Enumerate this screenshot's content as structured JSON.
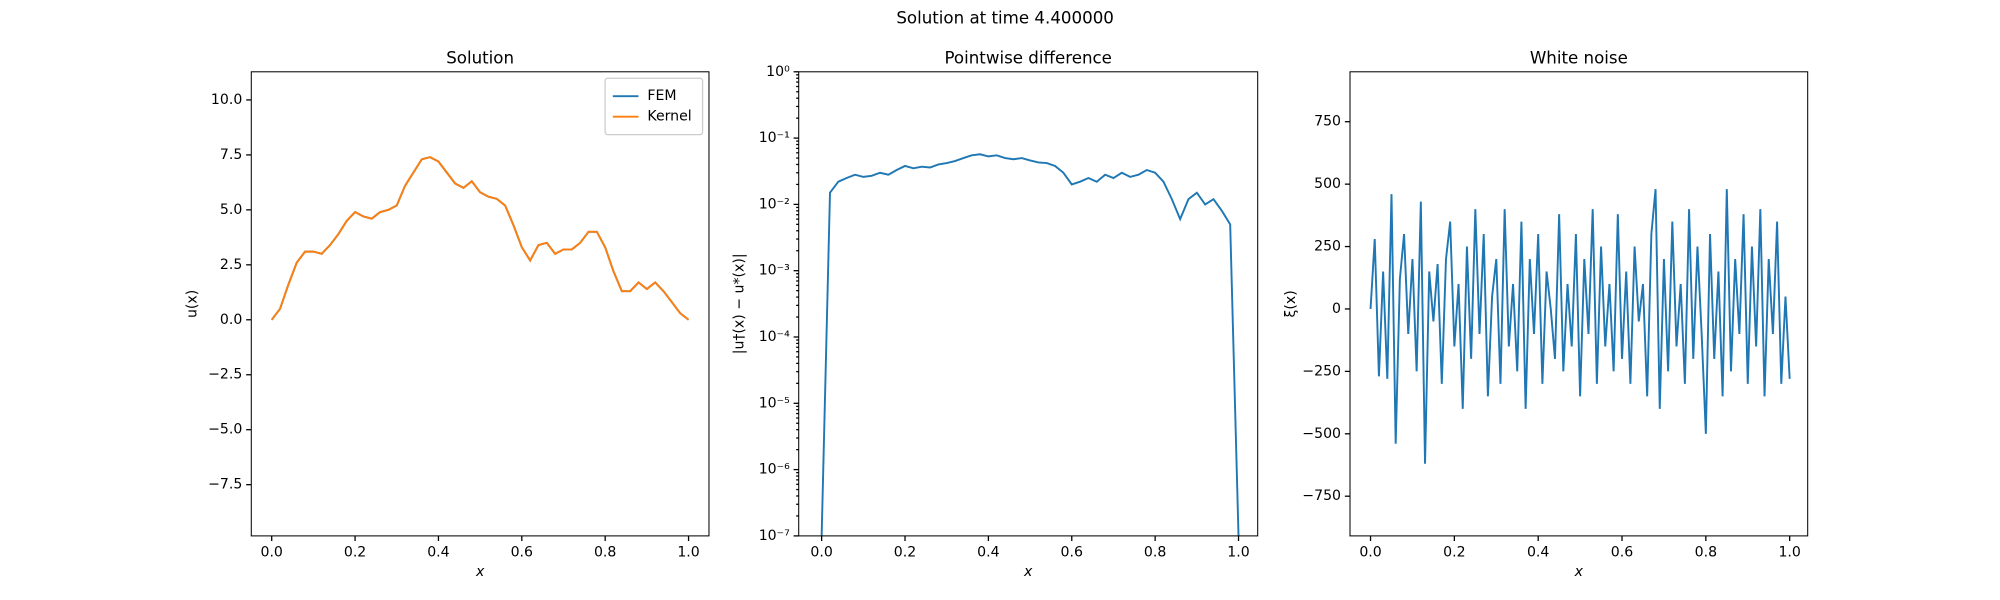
{
  "suptitle": "Solution at time 4.400000",
  "chart_data": [
    {
      "type": "line",
      "title": "Solution",
      "xlabel": "x",
      "ylabel": "u(x)",
      "x": [
        0,
        0.02,
        0.04,
        0.06,
        0.08,
        0.1,
        0.12,
        0.14,
        0.16,
        0.18,
        0.2,
        0.22,
        0.24,
        0.26,
        0.28,
        0.3,
        0.32,
        0.34,
        0.36,
        0.38,
        0.4,
        0.42,
        0.44,
        0.46,
        0.48,
        0.5,
        0.52,
        0.54,
        0.56,
        0.58,
        0.6,
        0.62,
        0.64,
        0.66,
        0.68,
        0.7,
        0.72,
        0.74,
        0.76,
        0.78,
        0.8,
        0.82,
        0.84,
        0.86,
        0.88,
        0.9,
        0.92,
        0.94,
        0.96,
        0.98,
        1
      ],
      "series": [
        {
          "name": "FEM",
          "color": "#1f77b4",
          "values": [
            0,
            0.5,
            1.6,
            2.6,
            3.1,
            3.1,
            3.0,
            3.4,
            3.9,
            4.5,
            4.9,
            4.7,
            4.6,
            4.9,
            5.0,
            5.2,
            6.1,
            6.7,
            7.3,
            7.4,
            7.2,
            6.7,
            6.2,
            6.0,
            6.3,
            5.8,
            5.6,
            5.5,
            5.2,
            4.3,
            3.3,
            2.7,
            3.4,
            3.5,
            3.0,
            3.2,
            3.2,
            3.5,
            4.0,
            4.0,
            3.3,
            2.2,
            1.3,
            1.3,
            1.7,
            1.4,
            1.7,
            1.3,
            0.8,
            0.3,
            0
          ]
        },
        {
          "name": "Kernel",
          "color": "#ff7f0e",
          "values": [
            0,
            0.5,
            1.6,
            2.6,
            3.1,
            3.1,
            3.0,
            3.4,
            3.9,
            4.5,
            4.9,
            4.7,
            4.6,
            4.9,
            5.0,
            5.2,
            6.1,
            6.7,
            7.3,
            7.4,
            7.2,
            6.7,
            6.2,
            6.0,
            6.3,
            5.8,
            5.6,
            5.5,
            5.2,
            4.3,
            3.3,
            2.7,
            3.4,
            3.5,
            3.0,
            3.2,
            3.2,
            3.5,
            4.0,
            4.0,
            3.3,
            2.2,
            1.3,
            1.3,
            1.7,
            1.4,
            1.7,
            1.3,
            0.8,
            0.3,
            0
          ]
        }
      ],
      "xlim": [
        -0.049,
        1.049
      ],
      "ylim": [
        -9.83,
        11.28
      ],
      "xticks": [
        {
          "value": 0,
          "label": "0.0"
        },
        {
          "value": 0.2,
          "label": "0.2"
        },
        {
          "value": 0.4,
          "label": "0.4"
        },
        {
          "value": 0.6,
          "label": "0.6"
        },
        {
          "value": 0.8,
          "label": "0.8"
        },
        {
          "value": 1,
          "label": "1.0"
        }
      ],
      "yticks": [
        {
          "value": -7.5,
          "label": "−7.5"
        },
        {
          "value": -5,
          "label": "−5.0"
        },
        {
          "value": -2.5,
          "label": "−2.5"
        },
        {
          "value": 0,
          "label": "0.0"
        },
        {
          "value": 2.5,
          "label": "2.5"
        },
        {
          "value": 5,
          "label": "5.0"
        },
        {
          "value": 7.5,
          "label": "7.5"
        },
        {
          "value": 10,
          "label": "10.0"
        }
      ],
      "legend": "upper right"
    },
    {
      "type": "line",
      "title": "Pointwise difference",
      "xlabel": "x",
      "ylabel": "|u†(x) − u*(x)|",
      "yscale": "log",
      "color": "#1f77b4",
      "x": [
        0,
        0.02,
        0.04,
        0.06,
        0.08,
        0.1,
        0.12,
        0.14,
        0.16,
        0.18,
        0.2,
        0.22,
        0.24,
        0.26,
        0.28,
        0.3,
        0.32,
        0.34,
        0.36,
        0.38,
        0.4,
        0.42,
        0.44,
        0.46,
        0.48,
        0.5,
        0.52,
        0.54,
        0.56,
        0.58,
        0.6,
        0.62,
        0.64,
        0.66,
        0.68,
        0.7,
        0.72,
        0.74,
        0.76,
        0.78,
        0.8,
        0.82,
        0.84,
        0.86,
        0.88,
        0.9,
        0.92,
        0.94,
        0.96,
        0.98,
        1
      ],
      "values": [
        1e-07,
        0.015,
        0.022,
        0.025,
        0.028,
        0.026,
        0.027,
        0.03,
        0.028,
        0.033,
        0.038,
        0.035,
        0.037,
        0.036,
        0.04,
        0.042,
        0.045,
        0.05,
        0.055,
        0.057,
        0.053,
        0.055,
        0.05,
        0.048,
        0.05,
        0.046,
        0.043,
        0.042,
        0.038,
        0.03,
        0.02,
        0.022,
        0.025,
        0.022,
        0.028,
        0.025,
        0.03,
        0.026,
        0.028,
        0.033,
        0.03,
        0.022,
        0.012,
        0.006,
        0.012,
        0.015,
        0.01,
        0.012,
        0.008,
        0.005,
        1e-07
      ],
      "xlim": [
        -0.055,
        1.046
      ],
      "ylim": [
        1e-07,
        1
      ],
      "xticks": [
        {
          "value": 0,
          "label": "0.0"
        },
        {
          "value": 0.2,
          "label": "0.2"
        },
        {
          "value": 0.4,
          "label": "0.4"
        },
        {
          "value": 0.6,
          "label": "0.6"
        },
        {
          "value": 0.8,
          "label": "0.8"
        },
        {
          "value": 1,
          "label": "1.0"
        }
      ],
      "yticks": [
        {
          "value": 1e-07,
          "label": "10⁻⁷"
        },
        {
          "value": 1e-06,
          "label": "10⁻⁶"
        },
        {
          "value": 1e-05,
          "label": "10⁻⁵"
        },
        {
          "value": 0.0001,
          "label": "10⁻⁴"
        },
        {
          "value": 0.001,
          "label": "10⁻³"
        },
        {
          "value": 0.01,
          "label": "10⁻²"
        },
        {
          "value": 0.1,
          "label": "10⁻¹"
        },
        {
          "value": 1,
          "label": "10⁰"
        }
      ]
    },
    {
      "type": "line",
      "title": "White noise",
      "xlabel": "x",
      "ylabel": "ξ(x)",
      "color": "#1f77b4",
      "x": [
        0,
        0.01,
        0.02,
        0.03,
        0.04,
        0.05,
        0.06,
        0.07,
        0.08,
        0.09,
        0.1,
        0.11,
        0.12,
        0.13,
        0.14,
        0.15,
        0.16,
        0.17,
        0.18,
        0.19,
        0.2,
        0.21,
        0.22,
        0.23,
        0.24,
        0.25,
        0.26,
        0.27,
        0.28,
        0.29,
        0.3,
        0.31,
        0.32,
        0.33,
        0.34,
        0.35,
        0.36,
        0.37,
        0.38,
        0.39,
        0.4,
        0.41,
        0.42,
        0.43,
        0.44,
        0.45,
        0.46,
        0.47,
        0.48,
        0.49,
        0.5,
        0.51,
        0.52,
        0.53,
        0.54,
        0.55,
        0.56,
        0.57,
        0.58,
        0.59,
        0.6,
        0.61,
        0.62,
        0.63,
        0.64,
        0.65,
        0.66,
        0.67,
        0.68,
        0.69,
        0.7,
        0.71,
        0.72,
        0.73,
        0.74,
        0.75,
        0.76,
        0.77,
        0.78,
        0.79,
        0.8,
        0.81,
        0.82,
        0.83,
        0.84,
        0.85,
        0.86,
        0.87,
        0.88,
        0.89,
        0.9,
        0.91,
        0.92,
        0.93,
        0.94,
        0.95,
        0.96,
        0.97,
        0.98,
        0.99,
        1
      ],
      "values": [
        0,
        280,
        -270,
        150,
        -280,
        460,
        -540,
        120,
        300,
        -100,
        200,
        -250,
        430,
        -620,
        150,
        -50,
        180,
        -300,
        200,
        350,
        -150,
        100,
        -400,
        250,
        -200,
        400,
        -100,
        300,
        -350,
        50,
        200,
        -300,
        400,
        -150,
        100,
        -250,
        350,
        -400,
        200,
        -100,
        300,
        -300,
        150,
        0,
        -200,
        380,
        -250,
        100,
        -150,
        300,
        -350,
        200,
        -100,
        400,
        -300,
        250,
        -150,
        100,
        -250,
        380,
        -200,
        150,
        -300,
        250,
        -50,
        100,
        -350,
        300,
        480,
        -400,
        200,
        -250,
        350,
        -150,
        100,
        -300,
        400,
        -200,
        250,
        -100,
        -500,
        300,
        -200,
        150,
        -350,
        480,
        -250,
        200,
        -100,
        380,
        -300,
        250,
        -150,
        400,
        -350,
        200,
        -100,
        350,
        -300,
        50,
        -280
      ],
      "xlim": [
        -0.049,
        1.043
      ],
      "ylim": [
        -909,
        950
      ],
      "xticks": [
        {
          "value": 0,
          "label": "0.0"
        },
        {
          "value": 0.2,
          "label": "0.2"
        },
        {
          "value": 0.4,
          "label": "0.4"
        },
        {
          "value": 0.6,
          "label": "0.6"
        },
        {
          "value": 0.8,
          "label": "0.8"
        },
        {
          "value": 1,
          "label": "1.0"
        }
      ],
      "yticks": [
        {
          "value": -750,
          "label": "−750"
        },
        {
          "value": -500,
          "label": "−500"
        },
        {
          "value": -250,
          "label": "−250"
        },
        0,
        250,
        500,
        750
      ]
    }
  ]
}
